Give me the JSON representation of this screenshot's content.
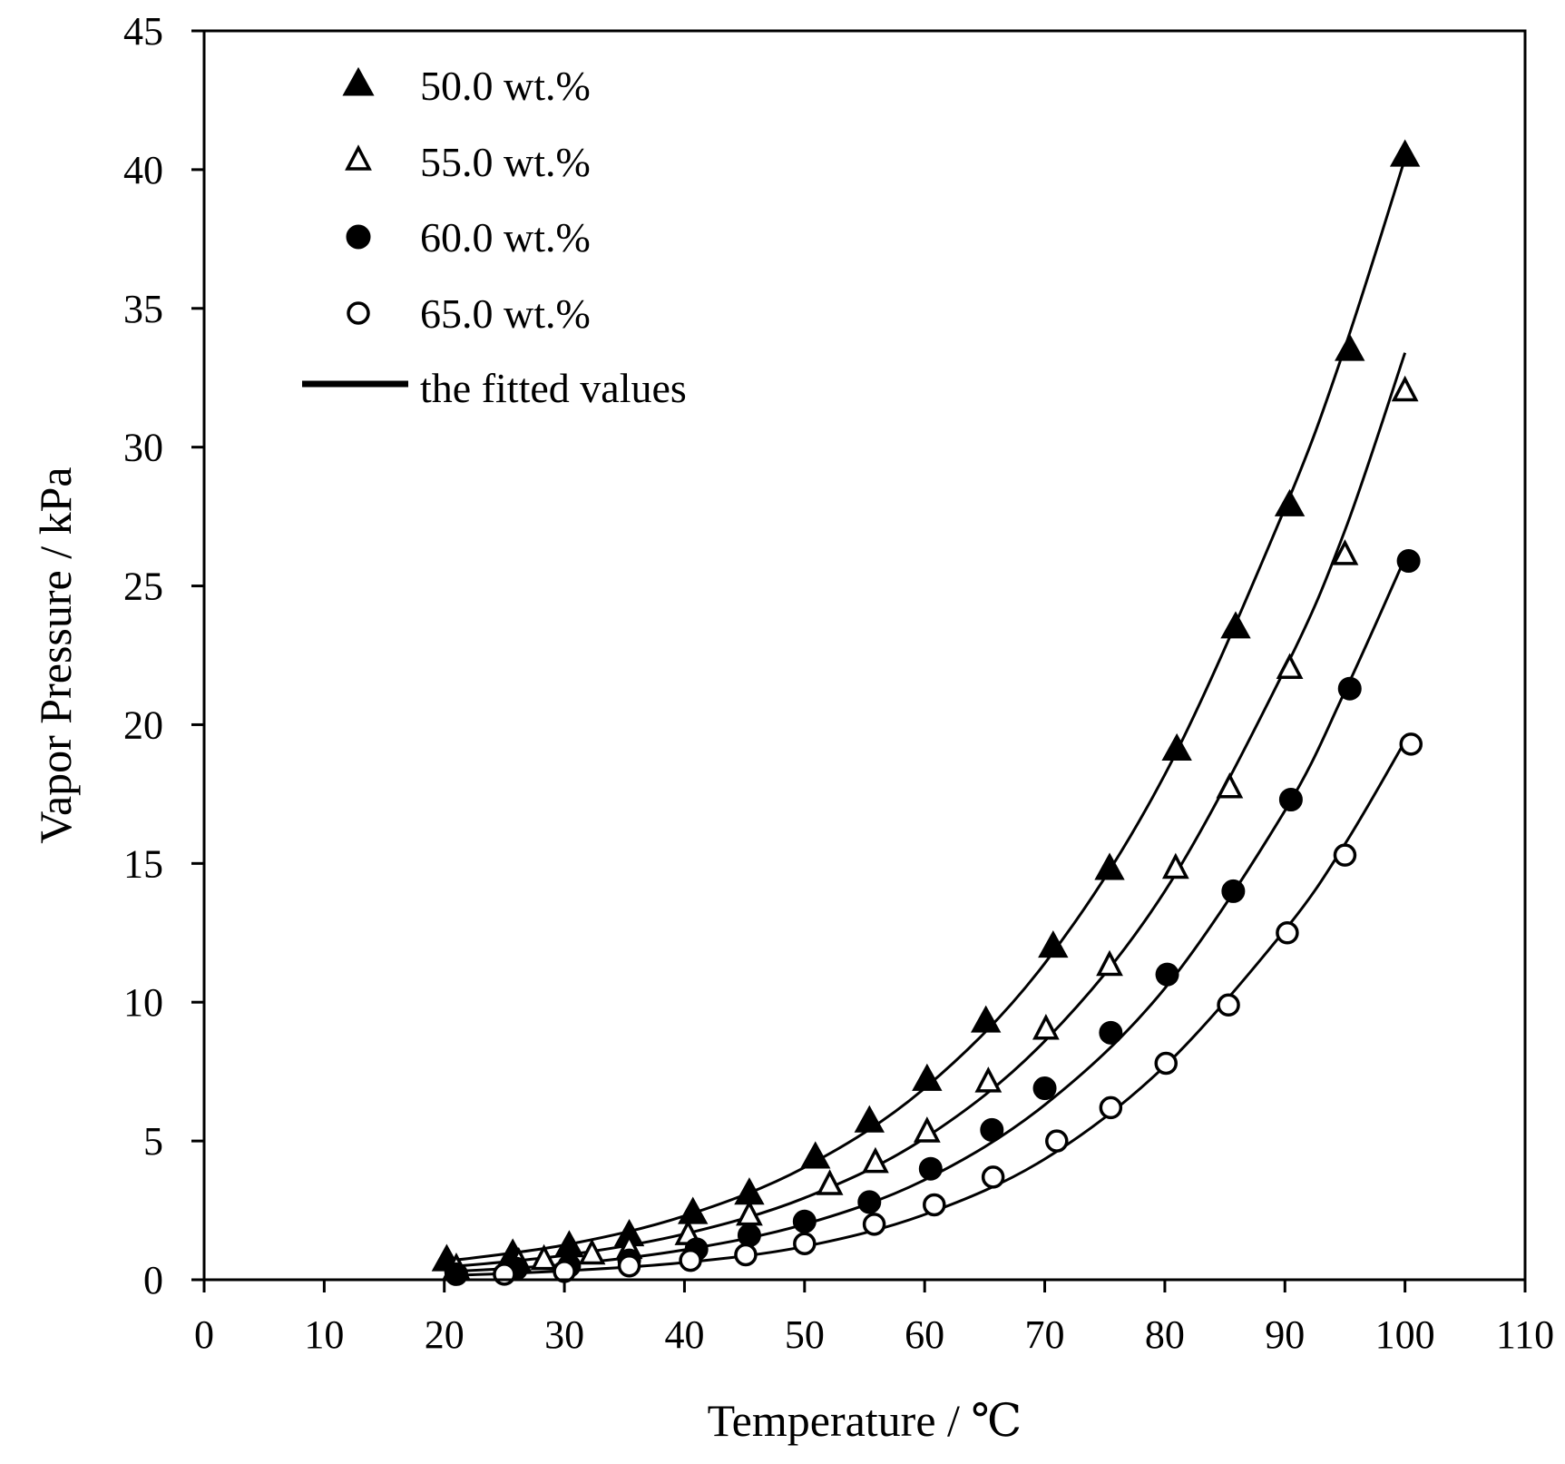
{
  "chart_data": {
    "type": "scatter",
    "title": "",
    "xlabel": "Temperature / ℃",
    "ylabel": "Vapor Pressure / kPa",
    "xlim": [
      0,
      110
    ],
    "ylim": [
      0,
      45
    ],
    "xticks": [
      "0",
      "10",
      "20",
      "30",
      "40",
      "50",
      "60",
      "70",
      "80",
      "90",
      "100",
      "110"
    ],
    "yticks": [
      "0",
      "5",
      "10",
      "15",
      "20",
      "25",
      "30",
      "35",
      "40",
      "45"
    ],
    "grid": false,
    "legend_position": "top-left",
    "fit_label": "the fitted values",
    "series": [
      {
        "name": "50.0 wt.%",
        "marker": "filled-triangle",
        "x": [
          20.2,
          25.7,
          30.4,
          35.4,
          40.7,
          45.4,
          50.9,
          55.4,
          60.2,
          65.1,
          70.7,
          75.4,
          81.0,
          85.9,
          90.4,
          95.4,
          100.0
        ],
        "y": [
          0.7,
          0.9,
          1.2,
          1.6,
          2.4,
          3.1,
          4.4,
          5.7,
          7.2,
          9.3,
          12.0,
          14.8,
          19.1,
          23.5,
          27.9,
          33.5,
          40.5
        ],
        "fit": [
          [
            20,
            0.66
          ],
          [
            30,
            1.25
          ],
          [
            40,
            2.3
          ],
          [
            50,
            4.05
          ],
          [
            60,
            6.9
          ],
          [
            70,
            11.4
          ],
          [
            80,
            18.2
          ],
          [
            90,
            27.8
          ],
          [
            95,
            33.6
          ],
          [
            100,
            40.4
          ]
        ]
      },
      {
        "name": "55.0 wt.%",
        "marker": "open-triangle",
        "x": [
          21.0,
          26.2,
          28.3,
          32.3,
          35.4,
          40.3,
          45.4,
          52.1,
          55.9,
          60.2,
          65.3,
          70.1,
          75.4,
          80.9,
          85.4,
          90.4,
          95.0,
          100.0
        ],
        "y": [
          0.4,
          0.6,
          0.7,
          0.9,
          1.1,
          1.6,
          2.3,
          3.4,
          4.2,
          5.3,
          7.1,
          9.0,
          11.3,
          14.8,
          17.7,
          22.0,
          26.1,
          32.0
        ],
        "fit": [
          [
            20,
            0.45
          ],
          [
            30,
            0.88
          ],
          [
            40,
            1.65
          ],
          [
            50,
            2.95
          ],
          [
            60,
            5.1
          ],
          [
            70,
            8.6
          ],
          [
            80,
            14.0
          ],
          [
            90,
            22.0
          ],
          [
            95,
            27.0
          ],
          [
            100,
            33.4
          ]
        ]
      },
      {
        "name": "60.0 wt.%",
        "marker": "filled-circle",
        "x": [
          21.0,
          26.0,
          30.4,
          35.4,
          41.0,
          45.4,
          50.0,
          55.4,
          60.5,
          65.6,
          70.0,
          75.5,
          80.2,
          85.7,
          90.5,
          95.4,
          100.3
        ],
        "y": [
          0.2,
          0.4,
          0.5,
          0.7,
          1.1,
          1.6,
          2.1,
          2.8,
          4.0,
          5.4,
          6.9,
          8.9,
          11.0,
          14.0,
          17.3,
          21.3,
          25.9
        ],
        "fit": [
          [
            20,
            0.28
          ],
          [
            30,
            0.55
          ],
          [
            40,
            1.08
          ],
          [
            50,
            2.0
          ],
          [
            60,
            3.6
          ],
          [
            70,
            6.3
          ],
          [
            80,
            10.5
          ],
          [
            90,
            16.9
          ],
          [
            95,
            21.2
          ],
          [
            100,
            26.0
          ]
        ]
      },
      {
        "name": "65.0 wt.%",
        "marker": "open-circle",
        "x": [
          25.0,
          30.0,
          35.4,
          40.5,
          45.1,
          50.0,
          55.8,
          60.8,
          65.7,
          71.0,
          75.5,
          80.1,
          85.3,
          90.2,
          95.0,
          100.5
        ],
        "y": [
          0.2,
          0.3,
          0.5,
          0.7,
          0.9,
          1.3,
          2.0,
          2.7,
          3.7,
          5.0,
          6.2,
          7.8,
          9.9,
          12.5,
          15.3,
          19.3
        ],
        "fit": [
          [
            21,
            0.16
          ],
          [
            30,
            0.32
          ],
          [
            40,
            0.62
          ],
          [
            50,
            1.2
          ],
          [
            60,
            2.35
          ],
          [
            70,
            4.35
          ],
          [
            80,
            7.7
          ],
          [
            90,
            12.6
          ],
          [
            95,
            15.7
          ],
          [
            100,
            19.4
          ]
        ]
      }
    ]
  }
}
